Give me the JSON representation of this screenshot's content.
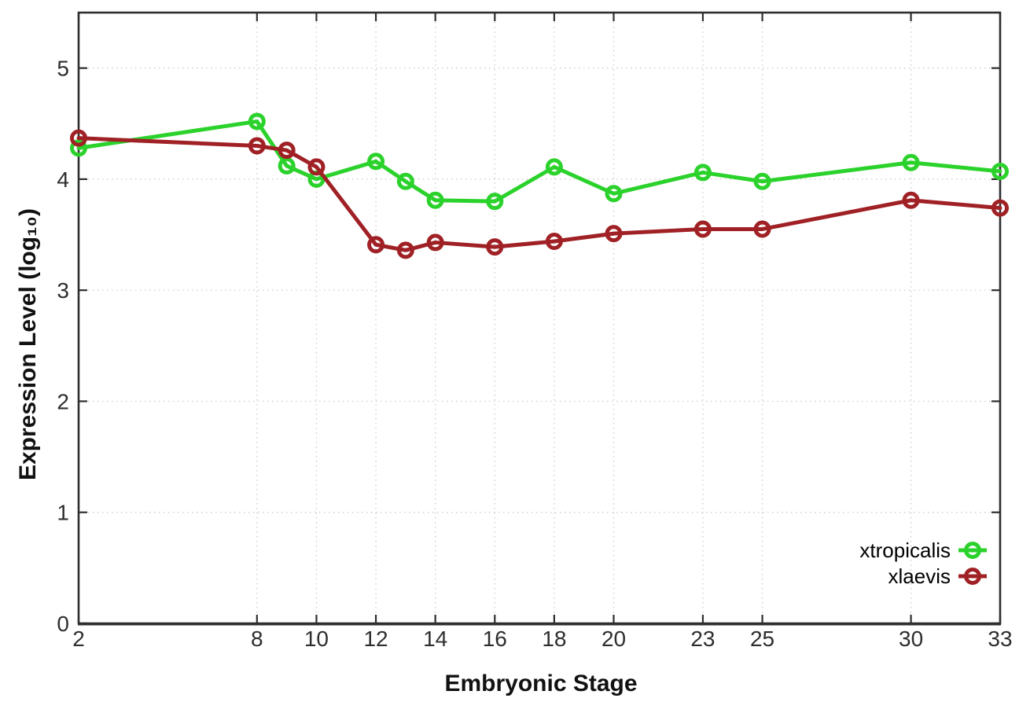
{
  "figure": {
    "xlabel": "Embryonic Stage",
    "ylabel": "Expression Level (log₁₀)",
    "background": "#ffffff",
    "frame_color": "#2e2e2e",
    "grid_color": "#c8c8c8"
  },
  "legend": {
    "items": [
      {
        "label": "xtropicalis",
        "color": "#2bd22b"
      },
      {
        "label": "xlaevis",
        "color": "#a02125"
      }
    ]
  },
  "chart_data": {
    "type": "line",
    "title": "",
    "xlabel": "Embryonic Stage",
    "ylabel": "Expression Level (log10)",
    "x": [
      2,
      8,
      9,
      10,
      12,
      13,
      14,
      16,
      18,
      20,
      23,
      25,
      30,
      33
    ],
    "series": [
      {
        "name": "xtropicalis",
        "color": "#2bd22b",
        "values": [
          4.28,
          4.52,
          4.12,
          4.0,
          4.16,
          3.98,
          3.81,
          3.8,
          4.11,
          3.87,
          4.06,
          3.98,
          4.15,
          4.07
        ]
      },
      {
        "name": "xlaevis",
        "color": "#a02125",
        "values": [
          4.37,
          4.3,
          4.26,
          4.11,
          3.41,
          3.36,
          3.43,
          3.39,
          3.44,
          3.51,
          3.55,
          3.55,
          3.81,
          3.74
        ]
      }
    ],
    "xticks": [
      2,
      8,
      10,
      12,
      14,
      16,
      18,
      20,
      23,
      25,
      30,
      33
    ],
    "yticks": [
      0,
      1,
      2,
      3,
      4,
      5
    ],
    "xlim": [
      2,
      33
    ],
    "ylim": [
      0,
      5.5
    ],
    "grid": true,
    "marker": "open-circle",
    "legend_position": "inside-bottom-right"
  }
}
